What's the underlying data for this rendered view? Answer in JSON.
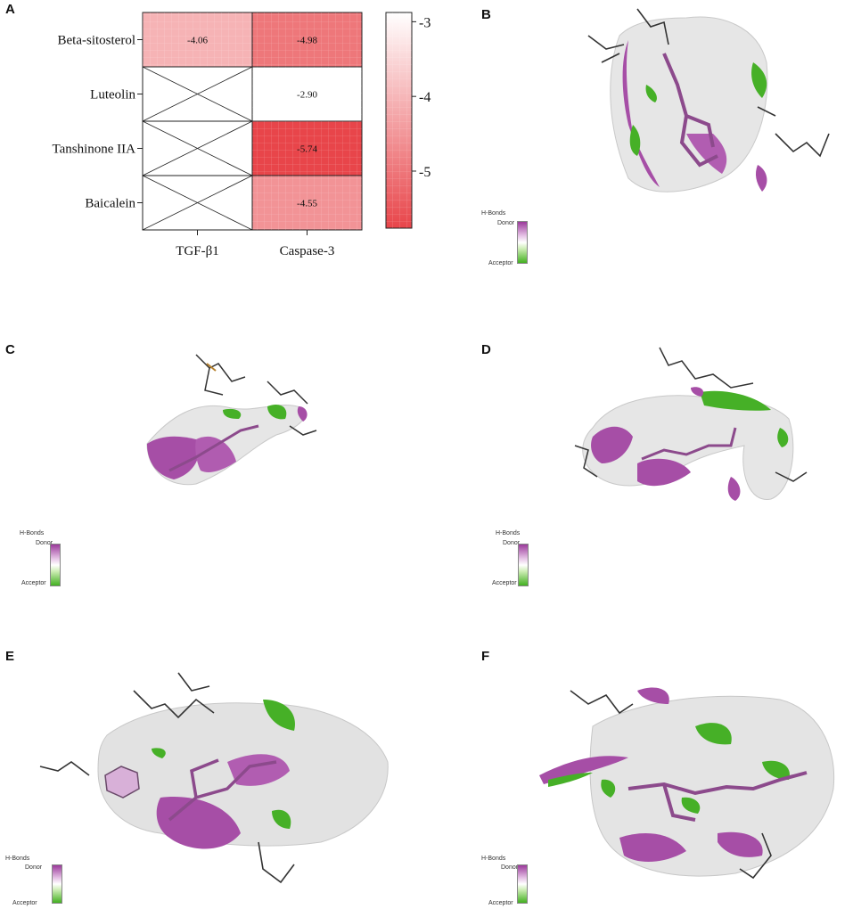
{
  "panels": {
    "a": "A",
    "b": "B",
    "c": "C",
    "d": "D",
    "e": "E",
    "f": "F"
  },
  "heatmap": {
    "rows": [
      "Beta-sitosterol",
      "Luteolin",
      "Tanshinone IIA",
      "Baicalein"
    ],
    "columns": [
      "TGF-β1",
      "Caspase-3"
    ],
    "cells": [
      [
        "-4.06",
        "-4.98"
      ],
      [
        "",
        "-2.90"
      ],
      [
        "",
        "-5.74"
      ],
      [
        "",
        "-4.55"
      ]
    ],
    "colorbar_ticks": [
      "-3",
      "-4",
      "-5"
    ]
  },
  "chart_data": {
    "type": "heatmap",
    "x": [
      "TGF-β1",
      "Caspase-3"
    ],
    "y": [
      "Beta-sitosterol",
      "Luteolin",
      "Tanshinone IIA",
      "Baicalein"
    ],
    "values": [
      [
        -4.06,
        -4.98
      ],
      [
        null,
        -2.9
      ],
      [
        null,
        -5.74
      ],
      [
        null,
        -4.55
      ]
    ],
    "colorbar": {
      "min": -5.74,
      "max": -2.9,
      "ticks": [
        -3,
        -4,
        -5
      ],
      "low_color": "#e8454a",
      "high_color": "#ffffff"
    }
  },
  "hbond_legend": {
    "title": "H-Bonds",
    "donor": "Donor",
    "acceptor": "Acceptor",
    "donor_color": "#9b3a9b",
    "acceptor_color": "#43b021"
  }
}
